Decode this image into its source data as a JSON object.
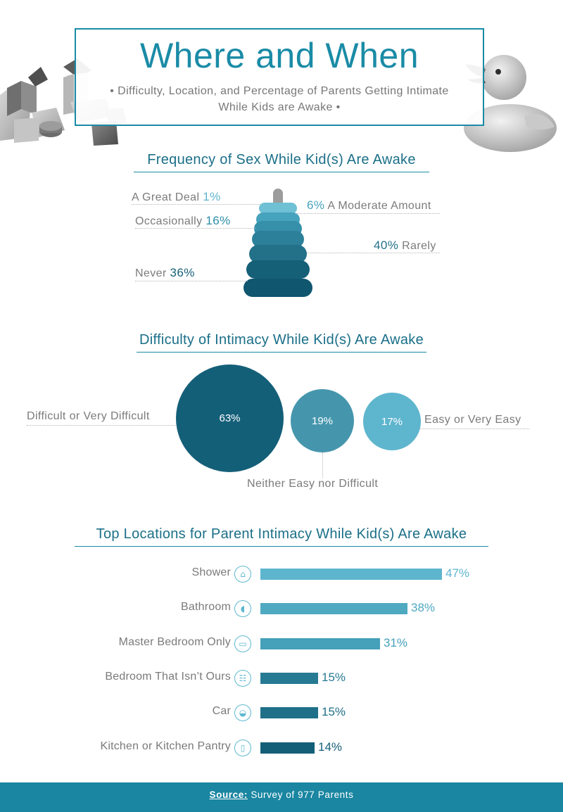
{
  "header": {
    "title": "Where and When",
    "subtitle": "• Difficulty, Location, and Percentage of Parents Getting Intimate While Kids are Awake •"
  },
  "colors": {
    "accent": "#1a8ba6",
    "dark_teal": "#145f78",
    "mid_teal": "#2f8ea8",
    "light_teal": "#5eb5ce",
    "footer": "#1a86a1"
  },
  "chart_data": [
    {
      "type": "bar",
      "title": "Frequency of Sex While Kid(s) Are Awake",
      "visual": "stacking-ring-toy",
      "categories": [
        "A Great Deal",
        "A Moderate Amount",
        "Occasionally",
        "Rarely",
        "Never"
      ],
      "values": [
        1,
        6,
        16,
        40,
        36
      ],
      "value_labels": [
        "1%",
        "6%",
        "16%",
        "40%",
        "36%"
      ]
    },
    {
      "type": "scatter",
      "title": "Difficulty of Intimacy While Kid(s) Are Awake",
      "visual": "bubbles",
      "categories": [
        "Difficult or Very Difficult",
        "Neither Easy nor Difficult",
        "Easy or Very Easy"
      ],
      "values": [
        63,
        19,
        17
      ],
      "value_labels": [
        "63%",
        "19%",
        "17%"
      ]
    },
    {
      "type": "bar",
      "title": "Top Locations for Parent Intimacy While Kid(s) Are Awake",
      "orientation": "horizontal",
      "categories": [
        "Shower",
        "Bathroom",
        "Master Bedroom Only",
        "Bedroom That Isn’t Ours",
        "Car",
        "Kitchen or Kitchen Pantry"
      ],
      "icons": [
        "shower-icon",
        "toilet-icon",
        "bed-icon",
        "bunk-bed-icon",
        "car-icon",
        "fridge-icon"
      ],
      "values": [
        47,
        38,
        31,
        15,
        15,
        14
      ],
      "value_labels": [
        "47%",
        "38%",
        "31%",
        "15%",
        "15%",
        "14%"
      ]
    }
  ],
  "footer": {
    "source_label": "Source:",
    "source_text": " Survey of 977 Parents"
  }
}
